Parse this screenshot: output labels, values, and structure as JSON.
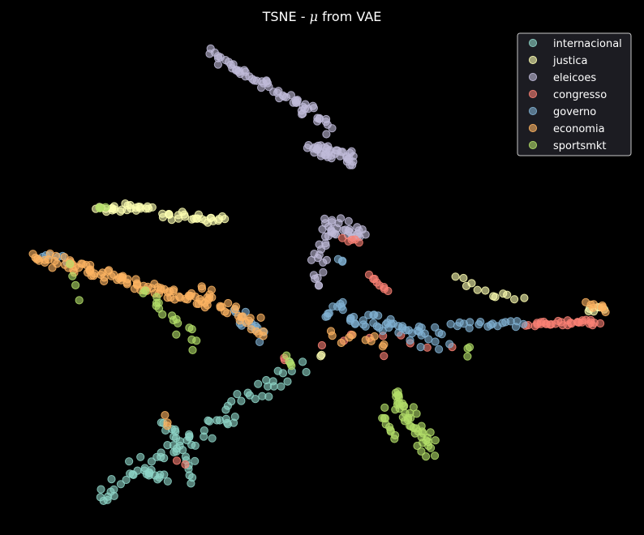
{
  "chart_data": {
    "type": "scatter",
    "title_prefix": "TSNE - ",
    "title_symbol": "μ",
    "title_suffix": " from VAE",
    "xlabel": "",
    "ylabel": "",
    "axes_visible": false,
    "grid": false,
    "legend_position": "top-right",
    "xlim": [
      -400,
      400
    ],
    "ylim": [
      -330,
      330
    ],
    "point_alpha": 0.6,
    "series": [
      {
        "name": "internacional",
        "color": "#8dd3c7",
        "segments": [
          {
            "x0": -282,
            "y0": -288,
            "x1": -27,
            "y1": -122,
            "n": 70,
            "spread": 11
          },
          {
            "x0": -198,
            "y0": -190,
            "x1": -160,
            "y1": -258,
            "n": 20,
            "spread": 8
          },
          {
            "x0": -220,
            "y0": -250,
            "x1": -190,
            "y1": -260,
            "n": 10,
            "spread": 6
          }
        ]
      },
      {
        "name": "justica",
        "color": "#feffb3",
        "segments": [
          {
            "x0": -278,
            "y0": 73,
            "x1": -212,
            "y1": 73,
            "n": 26,
            "spread": 4
          },
          {
            "x0": -200,
            "y0": 66,
            "x1": -120,
            "y1": 58,
            "n": 26,
            "spread": 4
          },
          {
            "x0": 170,
            "y0": -15,
            "x1": 248,
            "y1": -45,
            "n": 12,
            "spread": 5
          },
          {
            "x0": 330,
            "y0": -51,
            "x1": 352,
            "y1": -51,
            "n": 6,
            "spread": 4
          },
          {
            "x0": 0,
            "y0": -110,
            "x1": 0,
            "y1": -110,
            "n": 2,
            "spread": 3
          }
        ]
      },
      {
        "name": "eleicoes",
        "color": "#bfbbd9",
        "segments": [
          {
            "x0": -140,
            "y0": 264,
            "x1": -25,
            "y1": 200,
            "n": 45,
            "spread": 5
          },
          {
            "x0": -30,
            "y0": 205,
            "x1": 10,
            "y1": 170,
            "n": 18,
            "spread": 8
          },
          {
            "x0": -15,
            "y0": 150,
            "x1": 40,
            "y1": 132,
            "n": 40,
            "spread": 8
          },
          {
            "x0": 5,
            "y0": 55,
            "x1": 50,
            "y1": 38,
            "n": 28,
            "spread": 9
          },
          {
            "x0": 5,
            "y0": 45,
            "x1": -5,
            "y1": 0,
            "n": 16,
            "spread": 10
          },
          {
            "x0": -10,
            "y0": -10,
            "x1": -5,
            "y1": -25,
            "n": 5,
            "spread": 3
          }
        ]
      },
      {
        "name": "congresso",
        "color": "#fa8174",
        "segments": [
          {
            "x0": 255,
            "y0": -70,
            "x1": 345,
            "y1": -68,
            "n": 32,
            "spread": 4
          },
          {
            "x0": 30,
            "y0": 35,
            "x1": 50,
            "y1": 30,
            "n": 5,
            "spread": 4
          },
          {
            "x0": 55,
            "y0": -10,
            "x1": 85,
            "y1": -30,
            "n": 8,
            "spread": 4
          },
          {
            "x0": 5,
            "y0": -90,
            "x1": 150,
            "y1": -100,
            "n": 10,
            "spread": 12
          },
          {
            "x0": -180,
            "y0": -238,
            "x1": -170,
            "y1": -240,
            "n": 2,
            "spread": 3
          },
          {
            "x0": -48,
            "y0": -110,
            "x1": -45,
            "y1": -112,
            "n": 2,
            "spread": 3
          }
        ]
      },
      {
        "name": "governo",
        "color": "#81b1d2",
        "segments": [
          {
            "x0": 5,
            "y0": -50,
            "x1": 150,
            "y1": -90,
            "n": 55,
            "spread": 10
          },
          {
            "x0": 160,
            "y0": -70,
            "x1": 250,
            "y1": -70,
            "n": 18,
            "spread": 5
          },
          {
            "x0": -110,
            "y0": -55,
            "x1": -70,
            "y1": -85,
            "n": 14,
            "spread": 9
          },
          {
            "x0": -350,
            "y0": 17,
            "x1": -315,
            "y1": 10,
            "n": 6,
            "spread": 4
          },
          {
            "x0": 20,
            "y0": 10,
            "x1": 30,
            "y1": 10,
            "n": 3,
            "spread": 4
          }
        ]
      },
      {
        "name": "economia",
        "color": "#fdb462",
        "segments": [
          {
            "x0": -355,
            "y0": 15,
            "x1": -140,
            "y1": -45,
            "n": 95,
            "spread": 8
          },
          {
            "x0": -150,
            "y0": -30,
            "x1": -70,
            "y1": -80,
            "n": 28,
            "spread": 9
          },
          {
            "x0": 10,
            "y0": -85,
            "x1": 80,
            "y1": -100,
            "n": 10,
            "spread": 10
          },
          {
            "x0": 330,
            "y0": -45,
            "x1": 355,
            "y1": -52,
            "n": 8,
            "spread": 4
          },
          {
            "x0": -194,
            "y0": -183,
            "x1": -192,
            "y1": -195,
            "n": 3,
            "spread": 3
          }
        ]
      },
      {
        "name": "sportsmkt",
        "color": "#b3de69",
        "segments": [
          {
            "x0": 90,
            "y0": -155,
            "x1": 135,
            "y1": -225,
            "n": 45,
            "spread": 9
          },
          {
            "x0": 72,
            "y0": -180,
            "x1": 90,
            "y1": -210,
            "n": 10,
            "spread": 7
          },
          {
            "x0": -220,
            "y0": -30,
            "x1": -150,
            "y1": -90,
            "n": 18,
            "spread": 10
          },
          {
            "x0": -310,
            "y0": 0,
            "x1": -305,
            "y1": -35,
            "n": 4,
            "spread": 6
          },
          {
            "x0": -280,
            "y0": 73,
            "x1": -270,
            "y1": 73,
            "n": 3,
            "spread": 3
          },
          {
            "x0": -45,
            "y0": -108,
            "x1": -40,
            "y1": -120,
            "n": 4,
            "spread": 4
          },
          {
            "x0": 180,
            "y0": -95,
            "x1": 185,
            "y1": -105,
            "n": 3,
            "spread": 4
          }
        ]
      }
    ]
  }
}
